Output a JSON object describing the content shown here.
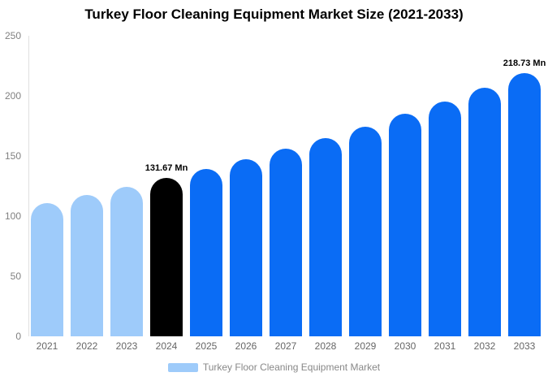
{
  "title": "Turkey Floor Cleaning Equipment Market Size (2021-2033)",
  "chart_data": {
    "type": "bar",
    "title": "Turkey Floor Cleaning Equipment Market Size (2021-2033)",
    "unit": "Mn",
    "categories": [
      "2021",
      "2022",
      "2023",
      "2024",
      "2025",
      "2026",
      "2027",
      "2028",
      "2029",
      "2030",
      "2031",
      "2032",
      "2033"
    ],
    "values": [
      111.1,
      117.6,
      124.4,
      131.67,
      139.3,
      147.4,
      156.0,
      165.0,
      174.6,
      184.8,
      195.5,
      206.8,
      218.73
    ],
    "point_labels": [
      "",
      "",
      "",
      "131.67 Mn",
      "",
      "",
      "",
      "",
      "",
      "",
      "",
      "",
      "218.73 Mn"
    ],
    "bar_colors": [
      "#9ECBFA",
      "#9ECBFA",
      "#9ECBFA",
      "#000000",
      "#0A6CF5",
      "#0A6CF5",
      "#0A6CF5",
      "#0A6CF5",
      "#0A6CF5",
      "#0A6CF5",
      "#0A6CF5",
      "#0A6CF5",
      "#0A6CF5"
    ],
    "color_roles": {
      "historical": "#9ECBFA",
      "base_year": "#000000",
      "forecast": "#0A6CF5"
    },
    "yticks": [
      0,
      50,
      100,
      150,
      200,
      250
    ],
    "ylim": [
      0,
      250
    ],
    "grid": false,
    "xlabel": "",
    "ylabel": "",
    "legend": {
      "position": "bottom",
      "items": [
        {
          "label": "Turkey Floor Cleaning Equipment Market",
          "swatch_color": "#9ECBFA"
        }
      ]
    },
    "axis_styles": {
      "y_tick_color": "#808080",
      "x_tick_color": "#666666",
      "axis_line_color": "#e0e0e0"
    }
  }
}
